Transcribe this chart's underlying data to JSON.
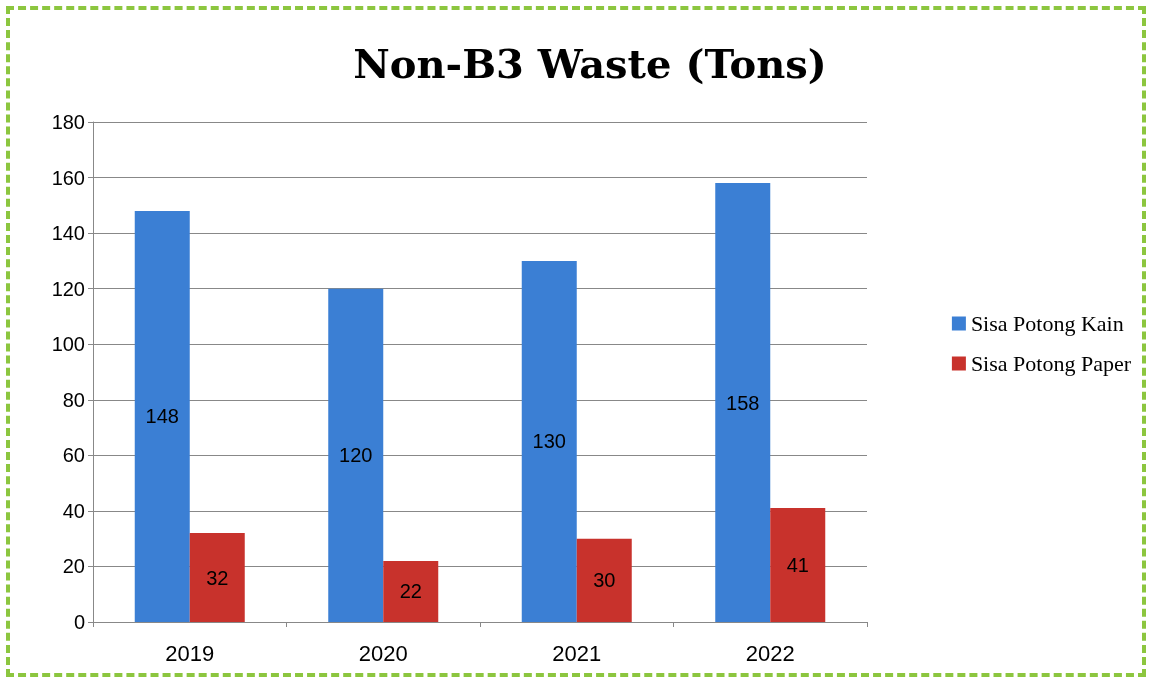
{
  "chart_data": {
    "type": "bar",
    "title": "Non-B3 Waste (Tons)",
    "categories": [
      "2019",
      "2020",
      "2021",
      "2022"
    ],
    "series": [
      {
        "name": "Sisa Potong Kain",
        "color": "#3b7fd4",
        "values": [
          148,
          120,
          130,
          158
        ]
      },
      {
        "name": "Sisa Potong Paper",
        "color": "#c8322c",
        "values": [
          32,
          22,
          30,
          41
        ]
      }
    ],
    "ylim": [
      0,
      180
    ],
    "yticks": [
      0,
      20,
      40,
      60,
      80,
      100,
      120,
      140,
      160,
      180
    ],
    "grid": "y",
    "legend": "right",
    "data_labels": true
  }
}
